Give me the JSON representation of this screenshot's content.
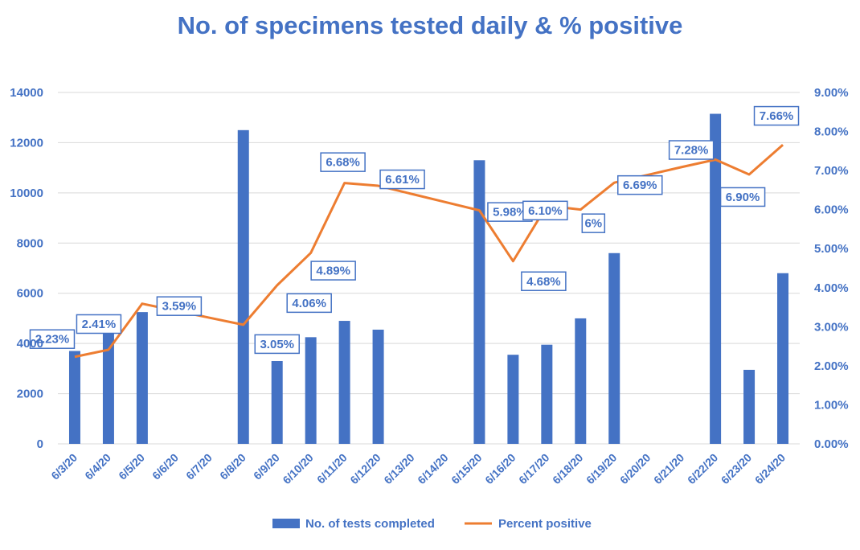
{
  "chart_data": {
    "type": "bar",
    "title": "No. of specimens tested daily & % positive",
    "categories": [
      "6/3/20",
      "6/4/20",
      "6/5/20",
      "6/6/20",
      "6/7/20",
      "6/8/20",
      "6/9/20",
      "6/10/20",
      "6/11/20",
      "6/12/20",
      "6/13/20",
      "6/14/20",
      "6/15/20",
      "6/16/20",
      "6/17/20",
      "6/18/20",
      "6/19/20",
      "6/20/20",
      "6/21/20",
      "6/22/20",
      "6/23/20",
      "6/24/20"
    ],
    "series": [
      {
        "name": "No. of tests completed",
        "type": "bar",
        "axis": "left",
        "values": [
          3700,
          4900,
          5250,
          null,
          null,
          12500,
          3300,
          4250,
          4900,
          4550,
          null,
          null,
          11300,
          3550,
          3950,
          5000,
          7600,
          null,
          null,
          13150,
          2950,
          6800
        ]
      },
      {
        "name": "Percent positive",
        "type": "line",
        "axis": "right",
        "values": [
          2.23,
          2.41,
          3.59,
          3.41,
          3.23,
          3.05,
          4.06,
          4.89,
          6.68,
          6.61,
          6.4,
          6.19,
          5.98,
          4.68,
          6.1,
          6.0,
          6.69,
          6.89,
          7.09,
          7.28,
          6.9,
          7.66
        ],
        "labels": [
          "2.23%",
          "2.41%",
          "3.59%",
          "",
          "",
          "3.05%",
          "4.06%",
          "4.89%",
          "6.68%",
          "6.61%",
          "",
          "",
          "5.98%",
          "4.68%",
          "6.10%",
          "6%",
          "6.69%",
          "",
          "",
          "7.28%",
          "6.90%",
          "7.66%"
        ]
      }
    ],
    "yleft": {
      "ylim": [
        0,
        14000
      ],
      "ticks": [
        "0",
        "2000",
        "4000",
        "6000",
        "8000",
        "10000",
        "12000",
        "14000"
      ]
    },
    "yright": {
      "ylim": [
        0,
        9
      ],
      "ticks": [
        "0.00%",
        "1.00%",
        "2.00%",
        "3.00%",
        "4.00%",
        "5.00%",
        "6.00%",
        "7.00%",
        "8.00%",
        "9.00%"
      ]
    },
    "grid": true,
    "legend": "bottom",
    "colors": {
      "bars": "#4472C4",
      "line": "#ED7D31",
      "text": "#4472C4",
      "grid": "#D9D9D9"
    }
  }
}
